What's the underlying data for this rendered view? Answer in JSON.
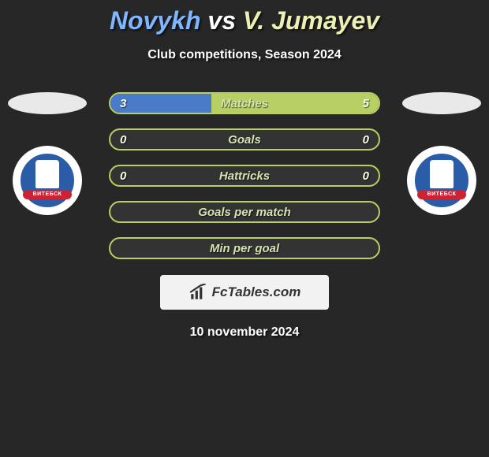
{
  "header": {
    "player1": "Novykh",
    "vs": "vs",
    "player2": "V. Jumayev",
    "player1_color": "#7fb6ff",
    "player2_color": "#ecf0b3",
    "subtitle": "Club competitions, Season 2024"
  },
  "stats": {
    "row_border": "#b7cf63",
    "bar_left_color": "#4a7bc8",
    "bar_right_color": "#b7cf63",
    "rows": [
      {
        "label": "Matches",
        "left": "3",
        "right": "5",
        "left_pct": 37.5,
        "right_pct": 62.5
      },
      {
        "label": "Goals",
        "left": "0",
        "right": "0",
        "left_pct": 0,
        "right_pct": 0
      },
      {
        "label": "Hattricks",
        "left": "0",
        "right": "0",
        "left_pct": 0,
        "right_pct": 0
      },
      {
        "label": "Goals per match",
        "left": "",
        "right": "",
        "left_pct": 0,
        "right_pct": 0
      },
      {
        "label": "Min per goal",
        "left": "",
        "right": "",
        "left_pct": 0,
        "right_pct": 0
      }
    ]
  },
  "badges": {
    "left_club_ribbon": "ВИТЕБСК",
    "right_club_ribbon": "ВИТЕБСК"
  },
  "brand": {
    "name": "FcTables.com"
  },
  "date": "10 november 2024"
}
